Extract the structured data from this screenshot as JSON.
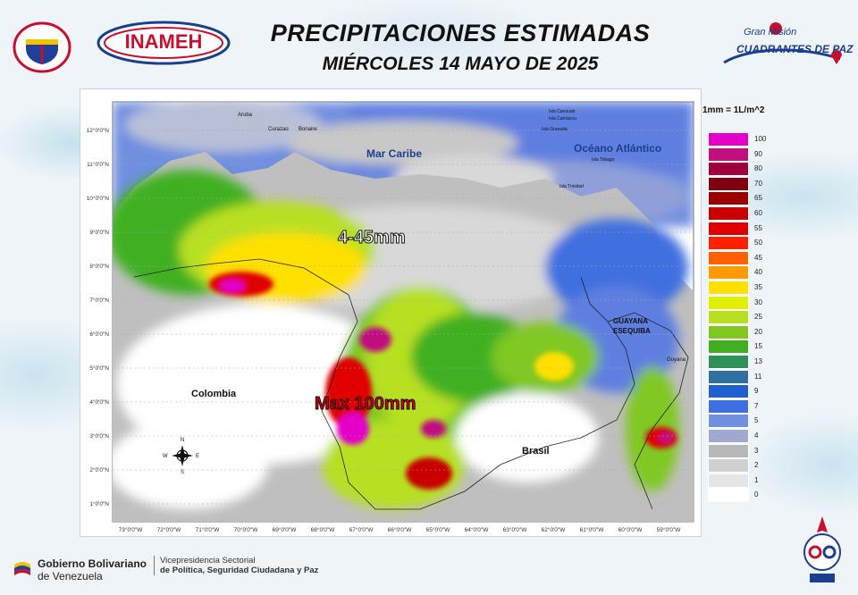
{
  "header": {
    "title": "PRECIPITACIONES ESTIMADAS",
    "subtitle": "MIÉRCOLES 14 MAYO DE 2025",
    "inameh_logo_text": "INAMEH",
    "mision_line1": "Gran Misión",
    "mision_line2": "CUADRANTES DE PAZ"
  },
  "map": {
    "seas": {
      "caribe": "Mar Caribe",
      "atlantico": "Océano Atlántico"
    },
    "countries": {
      "colombia": "Colombia",
      "brasil": "Brasil",
      "guayana_esequiba": [
        "GUAYANA",
        "ESEQUIBA"
      ],
      "guyana": "Guyana"
    },
    "islands": [
      "Aruba",
      "Curazao",
      "Bonaire",
      "Isla Canouan",
      "Isla Carriacou",
      "Isla Granada",
      "Isla Tobago",
      "Isla Trinidad"
    ],
    "annotations": {
      "range": "4-45mm",
      "max": "Max 100mm"
    },
    "lat_labels": [
      "12°0'0\"N",
      "11°0'0\"N",
      "10°0'0\"N",
      "9°0'0\"N",
      "8°0'0\"N",
      "7°0'0\"N",
      "6°0'0\"N",
      "5°0'0\"N",
      "4°0'0\"N",
      "3°0'0\"N",
      "2°0'0\"N",
      "1°0'0\"N"
    ],
    "lon_labels": [
      "73°0'0\"W",
      "72°0'0\"W",
      "71°0'0\"W",
      "70°0'0\"W",
      "69°0'0\"W",
      "68°0'0\"W",
      "67°0'0\"W",
      "66°0'0\"W",
      "65°0'0\"W",
      "64°0'0\"W",
      "63°0'0\"W",
      "62°0'0\"W",
      "61°0'0\"W",
      "60°0'0\"W",
      "59°0'0\"W"
    ],
    "compass": {
      "n": "N",
      "s": "S",
      "e": "E",
      "w": "W"
    }
  },
  "legend": {
    "title": "1mm = 1L/m^2",
    "items": [
      {
        "label": "100",
        "color": "#e400c8"
      },
      {
        "label": "90",
        "color": "#c01080"
      },
      {
        "label": "80",
        "color": "#a0003c"
      },
      {
        "label": "70",
        "color": "#800010"
      },
      {
        "label": "65",
        "color": "#9c0000"
      },
      {
        "label": "60",
        "color": "#c80000"
      },
      {
        "label": "55",
        "color": "#e00000"
      },
      {
        "label": "50",
        "color": "#ff2000"
      },
      {
        "label": "45",
        "color": "#ff6000"
      },
      {
        "label": "40",
        "color": "#ff9a00"
      },
      {
        "label": "35",
        "color": "#ffe000"
      },
      {
        "label": "30",
        "color": "#e0f000"
      },
      {
        "label": "25",
        "color": "#b8e020"
      },
      {
        "label": "20",
        "color": "#80c820"
      },
      {
        "label": "15",
        "color": "#40b020"
      },
      {
        "label": "13",
        "color": "#30905a"
      },
      {
        "label": "11",
        "color": "#3070a0"
      },
      {
        "label": "9",
        "color": "#1f5fd0"
      },
      {
        "label": "7",
        "color": "#3f70e0"
      },
      {
        "label": "5",
        "color": "#6f8fe0"
      },
      {
        "label": "4",
        "color": "#9fa8d0"
      },
      {
        "label": "3",
        "color": "#b8b8b8"
      },
      {
        "label": "2",
        "color": "#d0d0d0"
      },
      {
        "label": "1",
        "color": "#e6e6e6"
      },
      {
        "label": "0",
        "color": "#ffffff"
      }
    ]
  },
  "footer": {
    "gob_line1": "Gobierno Bolivariano",
    "gob_line2": "de Venezuela",
    "vice_line1": "Vicepresidencia Sectorial",
    "vice_line2": "de Política, Seguridad Ciudadana y Paz"
  }
}
